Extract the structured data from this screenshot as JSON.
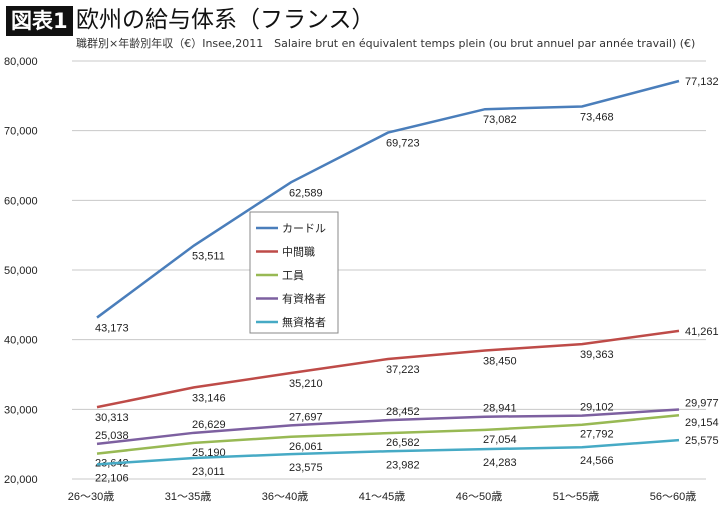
{
  "header": {
    "badge": "図表1",
    "title": "欧州の給与体系（フランス）",
    "subtitle": "職群別×年齢別年収（€）Insee,2011　Salaire brut en équivalent temps plein (ou brut annuel par année travail) (€)"
  },
  "chart_data": {
    "type": "line",
    "categories": [
      "26～30歳",
      "31～35歳",
      "36～40歳",
      "41～45歳",
      "46～50歳",
      "51～55歳",
      "56～60歳"
    ],
    "ylim": [
      20000,
      80000
    ],
    "yticks": [
      20000,
      30000,
      40000,
      50000,
      60000,
      70000,
      80000
    ],
    "ytick_labels": [
      "20,000",
      "30,000",
      "40,000",
      "50,000",
      "60,000",
      "70,000",
      "80,000"
    ],
    "grid": true,
    "legend_placement": "center-left",
    "series": [
      {
        "name": "カードル",
        "color": "#4a7ebb",
        "values": [
          43173,
          53511,
          62589,
          69723,
          73082,
          73468,
          77132
        ],
        "labels": [
          "43,173",
          "53,511",
          "62,589",
          "69,723",
          "73,082",
          "73,468",
          "77,132"
        ]
      },
      {
        "name": "中間職",
        "color": "#be4b48",
        "values": [
          30313,
          33146,
          35210,
          37223,
          38450,
          39363,
          41261
        ],
        "labels": [
          "30,313",
          "33,146",
          "35,210",
          "37,223",
          "38,450",
          "39,363",
          "41,261"
        ]
      },
      {
        "name": "工員",
        "color": "#98b954",
        "values": [
          23642,
          25190,
          26061,
          26582,
          27054,
          27792,
          29154
        ],
        "labels": [
          "23,642",
          "25,190",
          "26,061",
          "26,582",
          "27,054",
          "27,792",
          "29,154"
        ]
      },
      {
        "name": "有資格者",
        "color": "#7d60a0",
        "values": [
          25038,
          26629,
          27697,
          28452,
          28941,
          29102,
          29977
        ],
        "labels": [
          "25,038",
          "26,629",
          "27,697",
          "28,452",
          "28,941",
          "29,102",
          "29,977"
        ]
      },
      {
        "name": "無資格者",
        "color": "#46aac5",
        "values": [
          22106,
          23011,
          23575,
          23982,
          24283,
          24566,
          25575
        ],
        "labels": [
          "22,106",
          "23,011",
          "23,575",
          "23,982",
          "24,283",
          "24,566",
          "25,575"
        ]
      }
    ]
  }
}
